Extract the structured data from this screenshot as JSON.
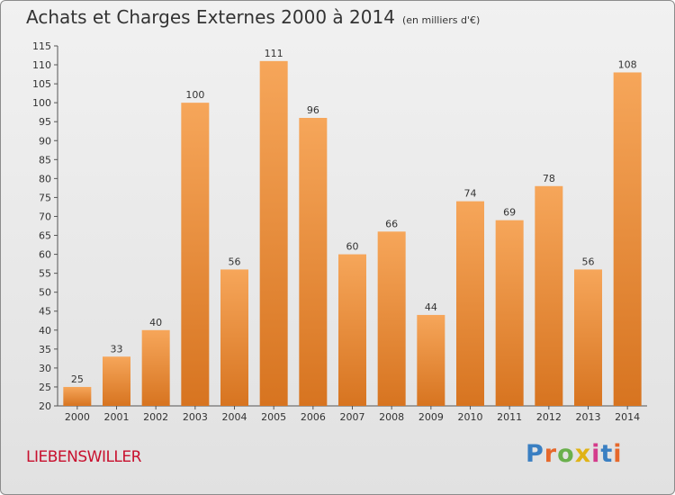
{
  "title": "Achats et Charges Externes 2000 à 2014",
  "unit": "(en milliers d'€)",
  "commune": "LIEBENSWILLER",
  "logo": {
    "letters": [
      "P",
      "r",
      "o",
      "x",
      "i",
      "t",
      "i"
    ],
    "colors": [
      "#3a7fc2",
      "#e6682b",
      "#6ab04c",
      "#e0b316",
      "#d43c8c",
      "#3a7fc2",
      "#e6682b"
    ]
  },
  "colors": {
    "bar_top": "#f6a65a",
    "bar_bottom": "#d77420",
    "text": "#333333",
    "commune": "#c8102e"
  },
  "chart_data": {
    "type": "bar",
    "categories": [
      "2000",
      "2001",
      "2002",
      "2003",
      "2004",
      "2005",
      "2006",
      "2007",
      "2008",
      "2009",
      "2010",
      "2011",
      "2012",
      "2013",
      "2014"
    ],
    "values": [
      25,
      33,
      40,
      100,
      56,
      111,
      96,
      60,
      66,
      44,
      74,
      69,
      78,
      56,
      108
    ],
    "ylim": [
      20,
      115
    ],
    "yticks": [
      20,
      25,
      30,
      35,
      40,
      45,
      50,
      55,
      60,
      65,
      70,
      75,
      80,
      85,
      90,
      95,
      100,
      105,
      110,
      115
    ],
    "grid": false
  }
}
